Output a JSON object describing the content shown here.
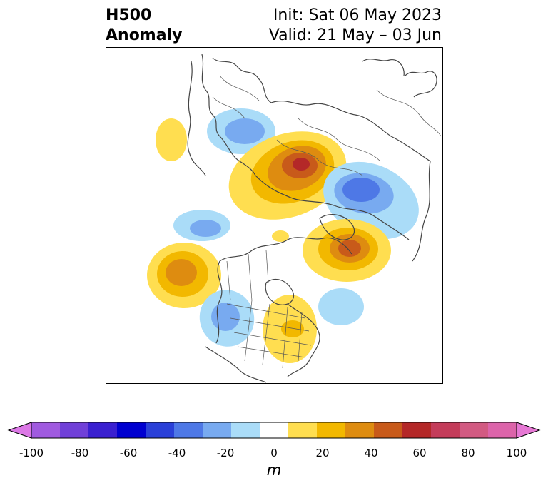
{
  "title": {
    "left_line1": "H500",
    "left_line2": "Anomaly",
    "right_line1": "Init: Sat 06 May 2023",
    "right_line2": "Valid: 21 May – 03 Jun"
  },
  "colorbar": {
    "unit": "m",
    "ticks": [
      "-100",
      "-80",
      "-60",
      "-40",
      "-20",
      "0",
      "20",
      "40",
      "60",
      "80",
      "100"
    ],
    "colors": [
      "#dc78e6",
      "#a05ae0",
      "#7040d8",
      "#3a20d0",
      "#0000d0",
      "#2a40d8",
      "#4e78e6",
      "#78aaf0",
      "#aadcf8",
      "#ffffff",
      "#ffde50",
      "#f2b800",
      "#de8c10",
      "#c85a1a",
      "#b42828",
      "#c43c5a",
      "#d25a82",
      "#dc64aa",
      "#e678d4"
    ]
  },
  "map": {
    "features": [
      {
        "name": "greenland-negative-anomaly",
        "level": "-20"
      },
      {
        "name": "siberia-positive-anomaly",
        "level": "60"
      },
      {
        "name": "russia-negative-anomaly",
        "level": "-40"
      },
      {
        "name": "bering-positive-anomaly",
        "level": "40"
      },
      {
        "name": "north-pacific-positive-anomaly",
        "level": "40"
      },
      {
        "name": "arctic-europe-positive-anomaly",
        "level": "40"
      },
      {
        "name": "western-us-negative-anomaly",
        "level": "-30"
      },
      {
        "name": "eastern-us-positive-anomaly",
        "level": "20"
      },
      {
        "name": "atlantic-negative-anomaly",
        "level": "-20"
      }
    ]
  }
}
